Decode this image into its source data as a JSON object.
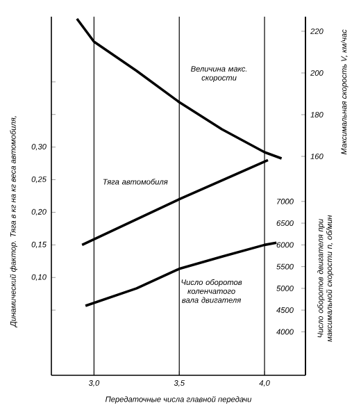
{
  "chart_data": {
    "type": "line",
    "xlabel": "Передаточные числа главной передачи",
    "ylabel": "Динамический фактор. Тяга в кг на кг веса автомобиля,",
    "y2label": "Максимальная скорость V, км/час",
    "y3label": "Число оборотов двигателя при максимальной скорости n, об/мин",
    "xlim": [
      2.75,
      4.24
    ],
    "xticks": [
      {
        "value": 3.0,
        "label": "3,0"
      },
      {
        "value": 3.5,
        "label": "3,5"
      },
      {
        "value": 4.0,
        "label": "4,0"
      }
    ],
    "ylim": [
      -0.05,
      0.5
    ],
    "yticks": [
      {
        "value": 0.05,
        "label": null
      },
      {
        "value": 0.1,
        "label": "0,10"
      },
      {
        "value": 0.15,
        "label": "0,15"
      },
      {
        "value": 0.2,
        "label": "0,20"
      },
      {
        "value": 0.25,
        "label": "0,25"
      },
      {
        "value": 0.3,
        "label": "0,30"
      },
      {
        "value": 0.35,
        "label": null
      },
      {
        "value": 0.4,
        "label": null
      }
    ],
    "y2lim": [
      55,
      227
    ],
    "y2ticks": [
      160,
      180,
      200,
      220
    ],
    "y3lim": [
      3000,
      11250
    ],
    "y3ticks": [
      4000,
      4500,
      5000,
      5500,
      6000,
      6500,
      7000
    ],
    "grid": "x",
    "series": [
      {
        "name": "Величина макс. скорости",
        "color": "#000000",
        "axis": "y2",
        "x": [
          2.9,
          3.0,
          3.25,
          3.5,
          3.75,
          4.0,
          4.1
        ],
        "values": [
          226,
          215,
          201,
          186,
          173,
          162,
          159
        ]
      },
      {
        "name": "Тяга автомобиля",
        "color": "#000000",
        "axis": "y",
        "x": [
          2.93,
          3.5,
          4.02
        ],
        "values": [
          0.15,
          0.22,
          0.28
        ]
      },
      {
        "name": "Число оборотов коленчатого вала двигателя",
        "color": "#000000",
        "axis": "y3",
        "x": [
          2.95,
          3.25,
          3.5,
          3.75,
          4.0,
          4.07
        ],
        "values": [
          4600,
          5000,
          5450,
          5730,
          6000,
          6050
        ]
      }
    ]
  }
}
